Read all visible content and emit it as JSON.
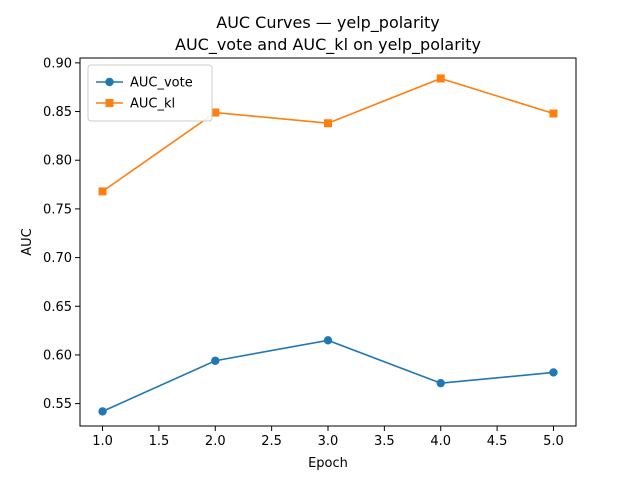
{
  "chart_data": {
    "type": "line",
    "title": "AUC Curves — yelp_polarity",
    "subtitle": "AUC_vote and AUC_kl on yelp_polarity",
    "xlabel": "Epoch",
    "ylabel": "AUC",
    "x": [
      1.0,
      2.0,
      3.0,
      4.0,
      5.0
    ],
    "xlim": [
      0.8,
      5.2
    ],
    "ylim": [
      0.527,
      0.905
    ],
    "xticks": [
      1.0,
      1.5,
      2.0,
      2.5,
      3.0,
      3.5,
      4.0,
      4.5,
      5.0
    ],
    "xtick_labels": [
      "1.0",
      "1.5",
      "2.0",
      "2.5",
      "3.0",
      "3.5",
      "4.0",
      "4.5",
      "5.0"
    ],
    "yticks": [
      0.55,
      0.6,
      0.65,
      0.7,
      0.75,
      0.8,
      0.85,
      0.9
    ],
    "ytick_labels": [
      "0.55",
      "0.60",
      "0.65",
      "0.70",
      "0.75",
      "0.80",
      "0.85",
      "0.90"
    ],
    "grid": false,
    "legend_position": "top-left",
    "series": [
      {
        "name": "AUC_vote",
        "values": [
          0.542,
          0.594,
          0.615,
          0.571,
          0.582
        ],
        "color": "#1f77b4",
        "marker": "circle"
      },
      {
        "name": "AUC_kl",
        "values": [
          0.768,
          0.849,
          0.838,
          0.884,
          0.848
        ],
        "color": "#ff7f0e",
        "marker": "square"
      }
    ]
  }
}
